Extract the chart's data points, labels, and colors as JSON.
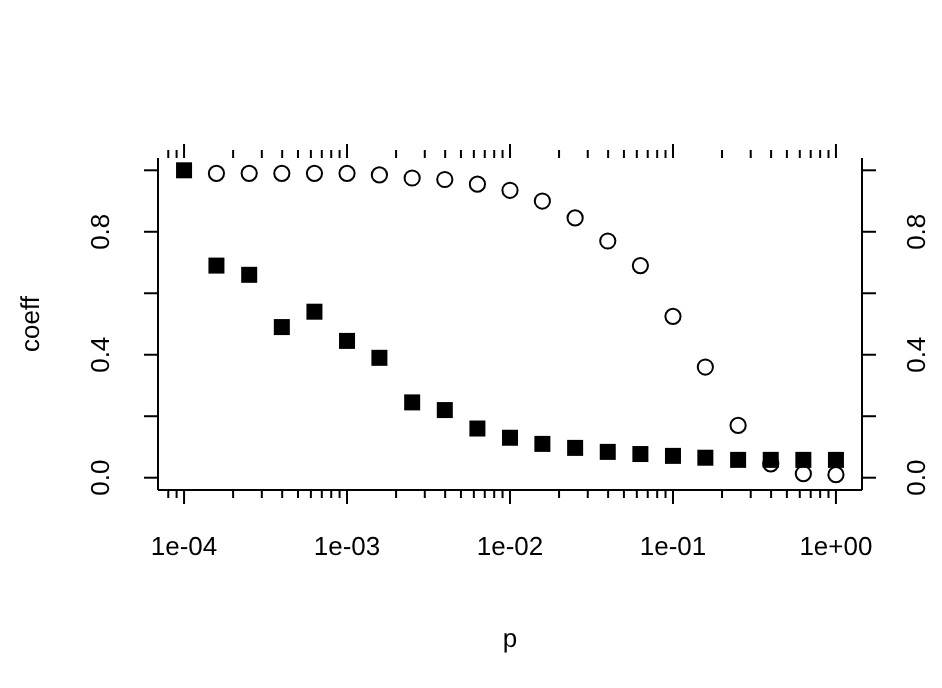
{
  "chart_data": {
    "type": "scatter",
    "xlabel": "p",
    "ylabel": "coeff",
    "log": "x",
    "x": [
      0.0001,
      0.000158,
      0.000251,
      0.000398,
      0.000631,
      0.001,
      0.00158,
      0.00251,
      0.00398,
      0.00631,
      0.01,
      0.0158,
      0.0251,
      0.0398,
      0.0631,
      0.1,
      0.158,
      0.251,
      0.398,
      0.631,
      1
    ],
    "series": [
      {
        "color": "#000000",
        "marker": "square",
        "values": [
          1.0,
          0.69,
          0.66,
          0.49,
          0.54,
          0.445,
          0.39,
          0.245,
          0.22,
          0.16,
          0.13,
          0.11,
          0.097,
          0.084,
          0.077,
          0.071,
          0.065,
          0.058,
          0.058,
          0.058,
          0.058
        ]
      },
      {
        "color": "#000000",
        "marker": "circle",
        "values": [
          null,
          0.99,
          0.99,
          0.99,
          0.99,
          0.99,
          0.985,
          0.975,
          0.97,
          0.955,
          0.935,
          0.9,
          0.845,
          0.77,
          0.69,
          0.525,
          0.36,
          0.17,
          0.045,
          0.013,
          0.01
        ]
      }
    ],
    "xlim": [
      6.92e-05,
      1.445
    ],
    "xticks": [
      {
        "value": 8e-05,
        "label": null
      },
      {
        "value": 9e-05,
        "label": null
      },
      {
        "value": 0.0001,
        "label": "1e-04"
      },
      {
        "value": 0.0002,
        "label": null
      },
      {
        "value": 0.0003,
        "label": null
      },
      {
        "value": 0.0004,
        "label": null
      },
      {
        "value": 0.0005,
        "label": null
      },
      {
        "value": 0.0006,
        "label": null
      },
      {
        "value": 0.0007,
        "label": null
      },
      {
        "value": 0.0008,
        "label": null
      },
      {
        "value": 0.0009,
        "label": null
      },
      {
        "value": 0.001,
        "label": "1e-03"
      },
      {
        "value": 0.002,
        "label": null
      },
      {
        "value": 0.003,
        "label": null
      },
      {
        "value": 0.004,
        "label": null
      },
      {
        "value": 0.005,
        "label": null
      },
      {
        "value": 0.006,
        "label": null
      },
      {
        "value": 0.007,
        "label": null
      },
      {
        "value": 0.008,
        "label": null
      },
      {
        "value": 0.009,
        "label": null
      },
      {
        "value": 0.01,
        "label": "1e-02"
      },
      {
        "value": 0.02,
        "label": null
      },
      {
        "value": 0.03,
        "label": null
      },
      {
        "value": 0.04,
        "label": null
      },
      {
        "value": 0.05,
        "label": null
      },
      {
        "value": 0.06,
        "label": null
      },
      {
        "value": 0.07,
        "label": null
      },
      {
        "value": 0.08,
        "label": null
      },
      {
        "value": 0.09,
        "label": null
      },
      {
        "value": 0.1,
        "label": "1e-01"
      },
      {
        "value": 0.2,
        "label": null
      },
      {
        "value": 0.3,
        "label": null
      },
      {
        "value": 0.4,
        "label": null
      },
      {
        "value": 0.5,
        "label": null
      },
      {
        "value": 0.6,
        "label": null
      },
      {
        "value": 0.7,
        "label": null
      },
      {
        "value": 0.8,
        "label": null
      },
      {
        "value": 0.9,
        "label": null
      },
      {
        "value": 1,
        "label": "1e+00"
      }
    ],
    "ylim": [
      -0.04,
      1.04
    ],
    "yticks": [
      {
        "value": 0,
        "label": "0.0"
      },
      {
        "value": 0.2,
        "label": null
      },
      0.4,
      {
        "value": 0.6,
        "label": null
      },
      0.8,
      {
        "value": 1,
        "label": null
      }
    ],
    "y2lim": [
      -0.04,
      1.04
    ],
    "y2ticks": [
      {
        "value": 0,
        "label": "0.0"
      },
      {
        "value": 0.2,
        "label": null
      },
      0.4,
      {
        "value": 0.6,
        "label": null
      },
      0.8,
      {
        "value": 1,
        "label": null
      }
    ],
    "grid": false,
    "legend": false
  }
}
